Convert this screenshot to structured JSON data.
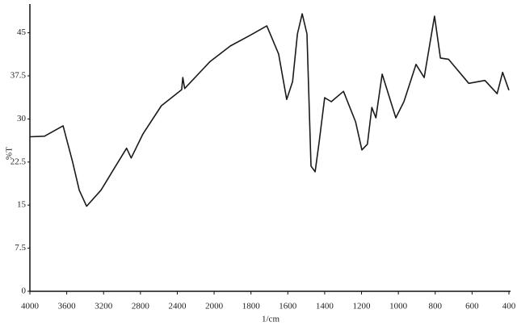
{
  "chart_data": {
    "type": "line",
    "x_label": "1/cm",
    "y_label": "%T",
    "x": [
      4000,
      3842,
      3640,
      3536,
      3464,
      3384,
      3228,
      3096,
      2950,
      2900,
      2772,
      2572,
      2352,
      2340,
      2320,
      2044,
      1912,
      1802,
      1714,
      1650,
      1606,
      1574,
      1548,
      1522,
      1496,
      1474,
      1452,
      1430,
      1400,
      1364,
      1298,
      1232,
      1198,
      1168,
      1144,
      1122,
      1088,
      1014,
      970,
      904,
      860,
      804,
      772,
      728,
      618,
      530,
      464,
      434,
      400
    ],
    "series": [
      {
        "name": "%T",
        "color": "#1a1a1a",
        "values": [
          26.9,
          27,
          28.8,
          22.5,
          17.6,
          14.8,
          17.6,
          21.1,
          24.9,
          23.2,
          27.4,
          32.3,
          35.1,
          37.2,
          35.3,
          40,
          42.7,
          44.6,
          46.2,
          41.3,
          33.4,
          36.5,
          44.8,
          48.3,
          44.8,
          21.8,
          20.8,
          26,
          33.7,
          33,
          34.8,
          29.5,
          24.6,
          25.6,
          32,
          30.2,
          37.8,
          30.2,
          33,
          39.5,
          37.2,
          47.9,
          40.6,
          40.4,
          36.2,
          36.7,
          34.4,
          38.1,
          35
        ]
      }
    ],
    "xlim": [
      4000,
      400
    ],
    "xticks": [
      4000,
      3600,
      3200,
      2800,
      2400,
      2000,
      1800,
      1600,
      1400,
      1200,
      1000,
      800,
      600,
      400
    ],
    "ylim": [
      0,
      50
    ],
    "yticks": [
      0,
      7.5,
      15,
      22.5,
      30,
      37.5,
      45
    ]
  }
}
